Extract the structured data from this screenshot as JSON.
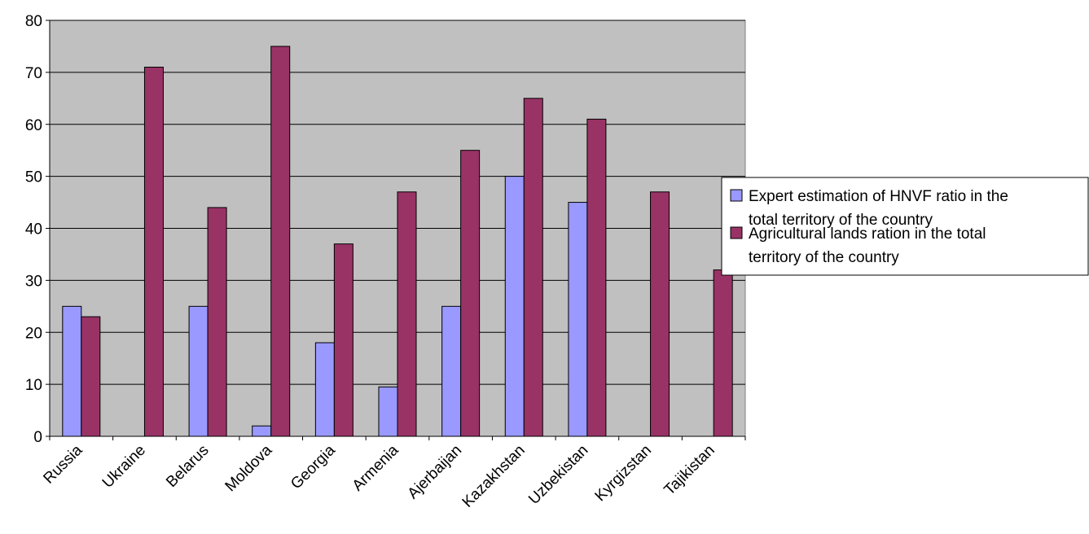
{
  "chart_data": {
    "type": "bar",
    "title": "",
    "xlabel": "",
    "ylabel": "",
    "categories": [
      "Russia",
      "Ukraine",
      "Belarus",
      "Moldova",
      "Georgia",
      "Armenia",
      "Ajerbaijan",
      "Kazakhstan",
      "Uzbekistan",
      "Kyrgizstan",
      "Tajikistan"
    ],
    "series": [
      {
        "name_lines": [
          "Expert estimation of HNVF ratio in the",
          "total territory of the country"
        ],
        "color": "#9999ff",
        "values": [
          25,
          null,
          25,
          2,
          18,
          9.5,
          25,
          50,
          45,
          null,
          null
        ]
      },
      {
        "name_lines": [
          "Agricultural lands ration in the total",
          "territory of the country"
        ],
        "color": "#993366",
        "values": [
          23,
          71,
          44,
          75,
          37,
          47,
          55,
          65,
          61,
          47,
          32
        ]
      }
    ],
    "ylim": [
      0,
      80
    ],
    "yticks": [
      0,
      10,
      20,
      30,
      40,
      50,
      60,
      70,
      80
    ],
    "grid": true,
    "plot_background": "#c0c0c0",
    "legend_position": "right"
  }
}
